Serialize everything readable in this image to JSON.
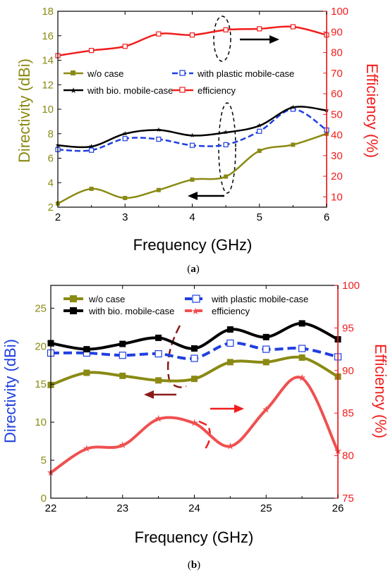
{
  "colors": {
    "olive": "#8a8a14",
    "black": "#000000",
    "blue": "#1f3fe0",
    "red": "#f21c1c",
    "red_b": "#f05050",
    "darkred": "#8b1a1a"
  },
  "chart_data": [
    {
      "type": "line",
      "caption": "a",
      "xlabel": "Frequency (GHz)",
      "ylabel": "Directivity (dBi)",
      "y2label": "Efficiency (%)",
      "xlim": [
        2,
        6
      ],
      "ylim": [
        2,
        18
      ],
      "y2lim": [
        5,
        100
      ],
      "xticks": [
        2,
        3,
        4,
        5,
        6
      ],
      "yticks": [
        2,
        4,
        6,
        8,
        10,
        12,
        14,
        16,
        18
      ],
      "y2ticks": [
        10,
        20,
        30,
        40,
        50,
        60,
        70,
        80,
        90,
        100
      ],
      "legend": [
        "w/o case",
        "with plastic mobile-case",
        "with bio. mobile-case",
        "efficiency"
      ],
      "series": [
        {
          "name": "w/o case",
          "axis": "left",
          "color": "olive",
          "marker": "square",
          "x": [
            2,
            2.5,
            3,
            3.5,
            4,
            4.5,
            5,
            5.5,
            6
          ],
          "y": [
            2.3,
            3.5,
            2.75,
            3.4,
            4.25,
            4.5,
            6.6,
            7.1,
            8.0
          ]
        },
        {
          "name": "with plastic mobile-case",
          "axis": "left",
          "color": "blue",
          "marker": "open-square",
          "dashed": true,
          "x": [
            2,
            2.5,
            3,
            3.5,
            4,
            4.5,
            5,
            5.5,
            6
          ],
          "y": [
            6.7,
            6.65,
            7.6,
            7.55,
            7.05,
            7.1,
            8.2,
            10.0,
            8.3
          ]
        },
        {
          "name": "with bio. mobile-case",
          "axis": "left",
          "color": "black",
          "marker": "star",
          "x": [
            2,
            2.5,
            3,
            3.5,
            4,
            4.5,
            5,
            5.5,
            6
          ],
          "y": [
            7.05,
            6.95,
            8.0,
            8.3,
            7.85,
            8.1,
            8.65,
            10.15,
            9.9
          ]
        },
        {
          "name": "efficiency",
          "axis": "right",
          "color": "red",
          "marker": "open-square",
          "x": [
            2,
            2.5,
            3,
            3.5,
            4,
            4.5,
            5,
            5.5,
            6
          ],
          "y": [
            78.5,
            81,
            83,
            89,
            88.5,
            91,
            91.5,
            92.5,
            88.5
          ]
        }
      ]
    },
    {
      "type": "line",
      "caption": "b",
      "xlabel": "Frequency (GHz)",
      "ylabel": "Directivity (dBi)",
      "y2label": "Efficiency (%)",
      "xlim": [
        22,
        26
      ],
      "ylim": [
        0,
        28
      ],
      "y2lim": [
        75,
        100
      ],
      "xticks": [
        22,
        23,
        24,
        25,
        26
      ],
      "yticks": [
        0,
        5,
        10,
        15,
        20,
        25
      ],
      "y2ticks": [
        75,
        80,
        85,
        90,
        95,
        100
      ],
      "legend": [
        "w/o case",
        "with plastic mobile-case",
        "with bio. mobile-case",
        "efficiency"
      ],
      "series": [
        {
          "name": "w/o case",
          "axis": "left",
          "color": "olive",
          "marker": "square",
          "x": [
            22,
            22.5,
            23,
            23.5,
            24,
            24.5,
            25,
            25.5,
            26
          ],
          "y": [
            14.9,
            16.5,
            16.1,
            15.5,
            15.7,
            17.9,
            17.9,
            18.5,
            16.0
          ]
        },
        {
          "name": "with plastic mobile-case",
          "axis": "left",
          "color": "blue",
          "marker": "open-square",
          "dashed": true,
          "x": [
            22,
            22.5,
            23,
            23.5,
            24,
            24.5,
            25,
            25.5,
            26
          ],
          "y": [
            19.1,
            19.1,
            18.8,
            19.0,
            18.4,
            20.4,
            19.6,
            19.7,
            18.6
          ]
        },
        {
          "name": "with bio. mobile-case",
          "axis": "left",
          "color": "black",
          "marker": "square",
          "x": [
            22,
            22.5,
            23,
            23.5,
            24,
            24.5,
            25,
            25.5,
            26
          ],
          "y": [
            20.4,
            19.6,
            20.3,
            21.1,
            19.7,
            22.2,
            21.2,
            23.0,
            20.9
          ]
        },
        {
          "name": "efficiency",
          "axis": "right",
          "color": "red_b",
          "marker": "star",
          "x": [
            22,
            22.5,
            23,
            23.5,
            24,
            24.5,
            25,
            25.5,
            26
          ],
          "y": [
            78.0,
            80.8,
            81.2,
            84.3,
            83.8,
            81.1,
            85.4,
            89.1,
            80.5
          ]
        }
      ]
    }
  ]
}
